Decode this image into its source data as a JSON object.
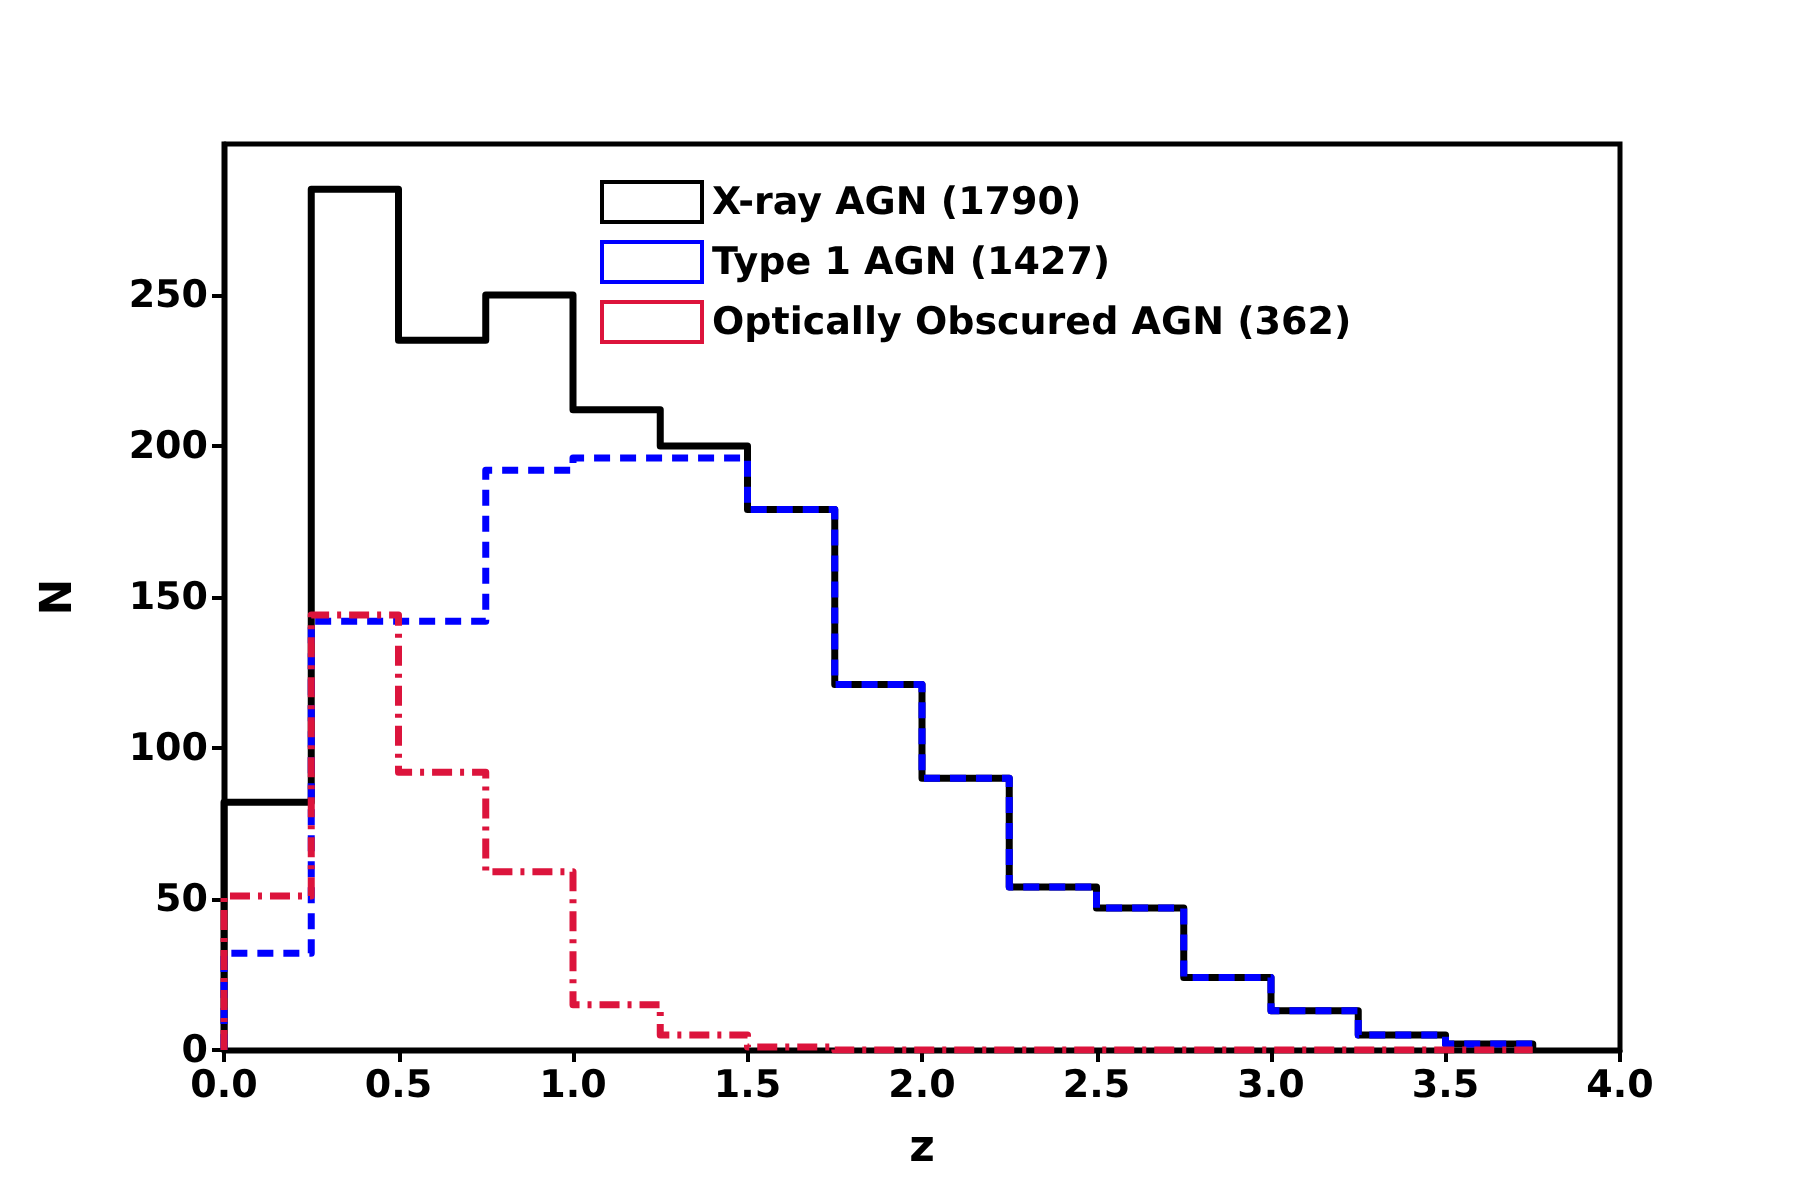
{
  "chart_data": {
    "type": "histogram",
    "xlabel": "z",
    "ylabel": "N",
    "bins": [
      0,
      0.25,
      0.5,
      0.75,
      1,
      1.25,
      1.5,
      1.75,
      2,
      2.25,
      2.5,
      2.75,
      3,
      3.25,
      3.5,
      3.75
    ],
    "series": [
      {
        "name": "X-ray AGN (1790)",
        "color": "#000000",
        "line_style": "solid",
        "values": [
          82,
          285,
          235,
          250,
          212,
          200,
          179,
          121,
          90,
          54,
          47,
          24,
          13,
          5,
          2
        ]
      },
      {
        "name": "Type 1 AGN (1427)",
        "color": "#0000ff",
        "line_style": "dashed",
        "values": [
          32,
          142,
          142,
          192,
          196,
          196,
          179,
          121,
          90,
          54,
          47,
          24,
          13,
          5,
          2
        ]
      },
      {
        "name": "Optically Obscured AGN (362)",
        "color": "#dc143c",
        "line_style": "dotted",
        "values": [
          51,
          144,
          92,
          59,
          15,
          5,
          1,
          0,
          0,
          0,
          0,
          0,
          0,
          0,
          0
        ]
      }
    ],
    "xlim": [
      0,
      4
    ],
    "ylim": [
      0,
      300
    ],
    "xticks": [
      {
        "value": 0,
        "label": "0.0"
      },
      {
        "value": 0.5,
        "label": "0.5"
      },
      {
        "value": 1,
        "label": "1.0"
      },
      {
        "value": 1.5,
        "label": "1.5"
      },
      {
        "value": 2,
        "label": "2.0"
      },
      {
        "value": 2.5,
        "label": "2.5"
      },
      {
        "value": 3,
        "label": "3.0"
      },
      {
        "value": 3.5,
        "label": "3.5"
      },
      {
        "value": 4,
        "label": "4.0"
      }
    ],
    "yticks": [
      0,
      50,
      100,
      150,
      200,
      250
    ],
    "grid": false,
    "legend": "top right"
  }
}
